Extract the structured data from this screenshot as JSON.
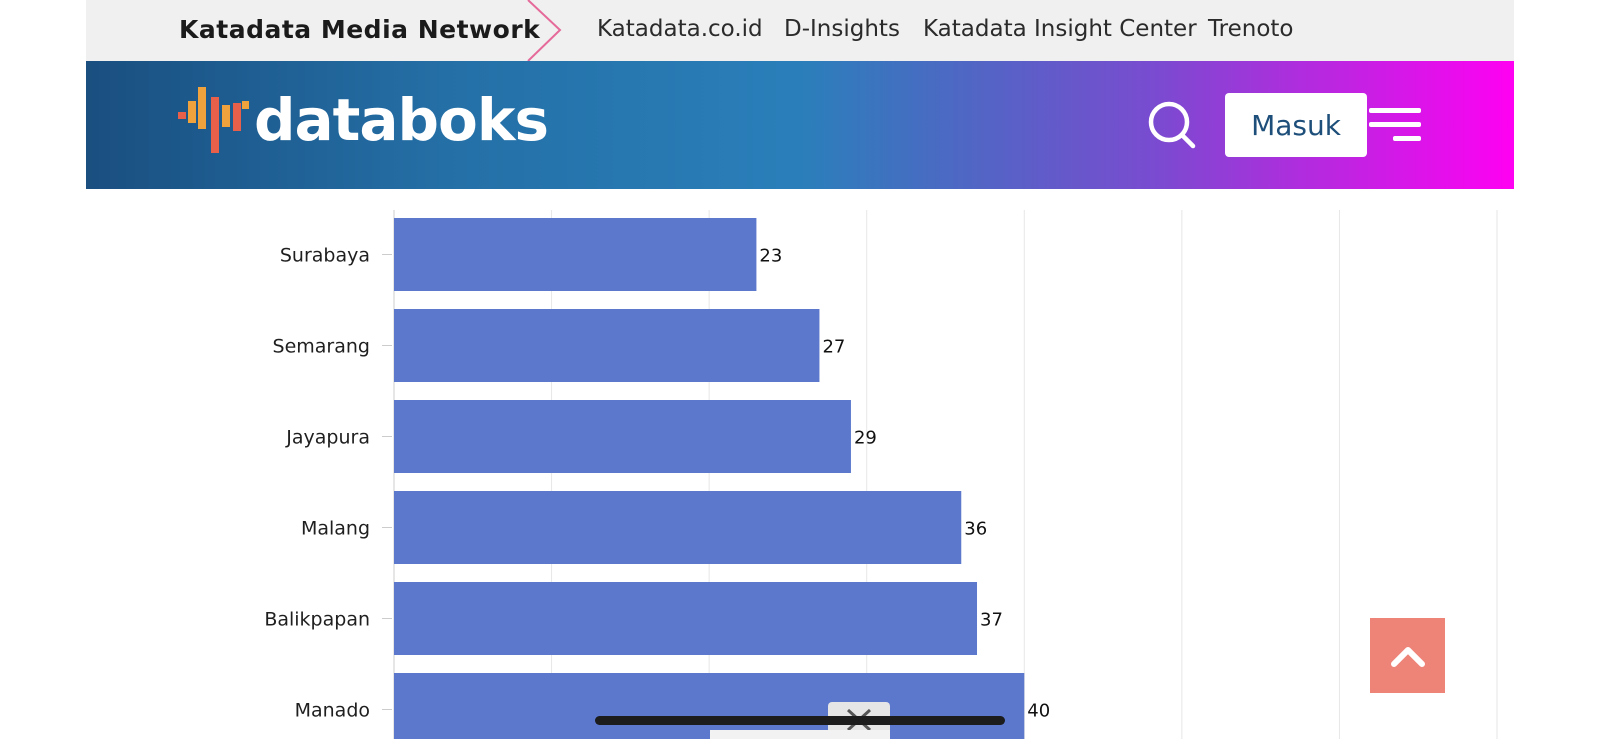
{
  "network_bar": {
    "title": "Katadata Media Network",
    "links": [
      "Katadata.co.id",
      "D-Insights",
      "Katadata Insight Center",
      "Trenoto"
    ],
    "chevron_color": "#e56a9a"
  },
  "header": {
    "logo_text": "databoks",
    "search_icon": "search-icon",
    "login_label": "Masuk",
    "menu_icon": "hamburger-menu-icon"
  },
  "chart_data": {
    "type": "bar",
    "orientation": "horizontal",
    "categories": [
      "Surabaya",
      "Semarang",
      "Jayapura",
      "Malang",
      "Balikpapan",
      "Manado"
    ],
    "values": [
      23,
      27,
      29,
      36,
      37,
      40
    ],
    "value_labels": [
      "23",
      "27",
      "29",
      "36",
      "37",
      "40"
    ],
    "bar_color": "#5b78cc",
    "xlim": [
      0,
      70
    ],
    "grid": true,
    "title": "",
    "xlabel": "",
    "ylabel": ""
  },
  "colors": {
    "scroll_top_bg": "#ee8378",
    "header_gradient_start": "#1a4f80",
    "header_gradient_end": "#ff00f2"
  },
  "scroll_top_icon": "chevron-up-icon",
  "close_icon": "close-icon"
}
